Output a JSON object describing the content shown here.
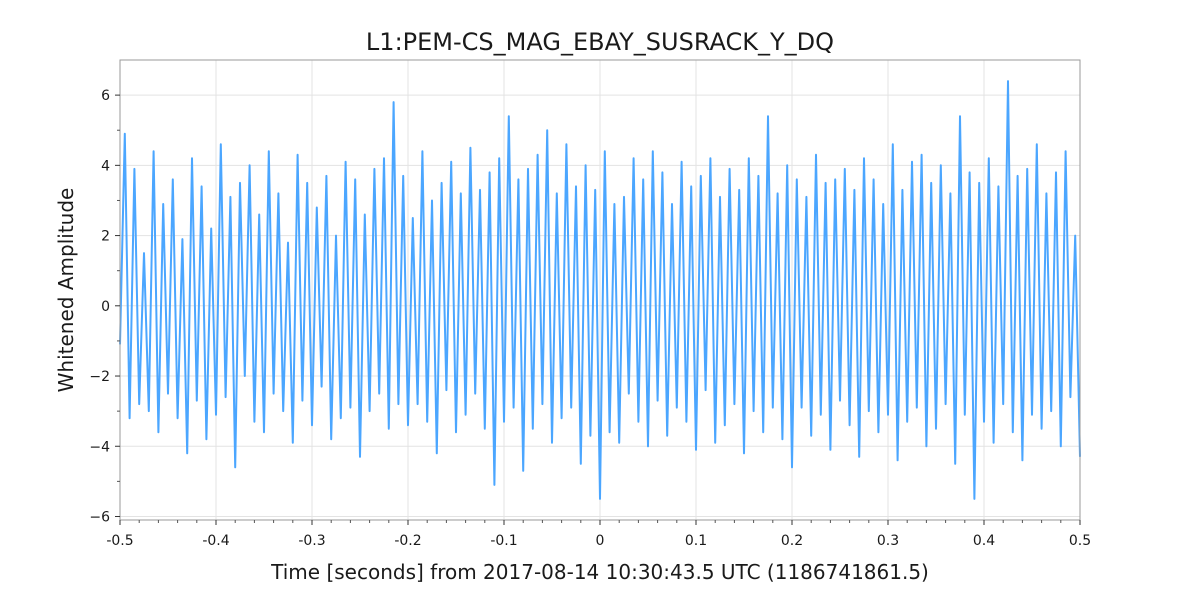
{
  "chart_data": {
    "type": "line",
    "title": "L1:PEM-CS_MAG_EBAY_SUSRACK_Y_DQ",
    "xlabel": "Time [seconds] from 2017-08-14 10:30:43.5 UTC (1186741861.5)",
    "ylabel": "Whitened Amplitude",
    "xlim": [
      -0.5,
      0.5
    ],
    "ylim": [
      -6.1,
      7.0
    ],
    "grid": true,
    "xticks": [
      -0.5,
      -0.4,
      -0.3,
      -0.2,
      -0.1,
      0,
      0.1,
      0.2,
      0.3,
      0.4,
      0.5
    ],
    "xtick_labels": [
      "-0.5",
      "-0.4",
      "-0.3",
      "-0.2",
      "-0.1",
      "0",
      "0.1",
      "0.2",
      "0.3",
      "0.4",
      "0.5"
    ],
    "yticks": [
      -6,
      -4,
      -2,
      0,
      2,
      4,
      6
    ],
    "ytick_labels": [
      "−6",
      "−4",
      "−2",
      "0",
      "2",
      "4",
      "6"
    ],
    "series_color": "#4ba6ff",
    "series": [
      {
        "x": [
          -0.5,
          -0.495,
          -0.49,
          -0.485,
          -0.48,
          -0.475,
          -0.47,
          -0.465,
          -0.46,
          -0.455,
          -0.45,
          -0.445,
          -0.44,
          -0.435,
          -0.43,
          -0.425,
          -0.42,
          -0.415,
          -0.41,
          -0.405,
          -0.4,
          -0.395,
          -0.39,
          -0.385,
          -0.38,
          -0.375,
          -0.37,
          -0.365,
          -0.36,
          -0.355,
          -0.35,
          -0.345,
          -0.34,
          -0.335,
          -0.33,
          -0.325,
          -0.32,
          -0.315,
          -0.31,
          -0.305,
          -0.3,
          -0.295,
          -0.29,
          -0.285,
          -0.28,
          -0.275,
          -0.27,
          -0.265,
          -0.26,
          -0.255,
          -0.25,
          -0.245,
          -0.24,
          -0.235,
          -0.23,
          -0.225,
          -0.22,
          -0.215,
          -0.21,
          -0.205,
          -0.2,
          -0.195,
          -0.19,
          -0.185,
          -0.18,
          -0.175,
          -0.17,
          -0.165,
          -0.16,
          -0.155,
          -0.15,
          -0.145,
          -0.14,
          -0.135,
          -0.13,
          -0.125,
          -0.12,
          -0.115,
          -0.11,
          -0.105,
          -0.1,
          -0.095,
          -0.09,
          -0.085,
          -0.08,
          -0.075,
          -0.07,
          -0.065,
          -0.06,
          -0.055,
          -0.05,
          -0.045,
          -0.04,
          -0.035,
          -0.03,
          -0.025,
          -0.02,
          -0.015,
          -0.01,
          -0.005,
          0,
          0.005,
          0.01,
          0.015,
          0.02,
          0.025,
          0.03,
          0.035,
          0.04,
          0.045,
          0.05,
          0.055,
          0.06,
          0.065,
          0.07,
          0.075,
          0.08,
          0.085,
          0.09,
          0.095,
          0.1,
          0.105,
          0.11,
          0.115,
          0.12,
          0.125,
          0.13,
          0.135,
          0.14,
          0.145,
          0.15,
          0.155,
          0.16,
          0.165,
          0.17,
          0.175,
          0.18,
          0.185,
          0.19,
          0.195,
          0.2,
          0.205,
          0.21,
          0.215,
          0.22,
          0.225,
          0.23,
          0.235,
          0.24,
          0.245,
          0.25,
          0.255,
          0.26,
          0.265,
          0.27,
          0.275,
          0.28,
          0.285,
          0.29,
          0.295,
          0.3,
          0.305,
          0.31,
          0.315,
          0.32,
          0.325,
          0.33,
          0.335,
          0.34,
          0.345,
          0.35,
          0.355,
          0.36,
          0.365,
          0.37,
          0.375,
          0.38,
          0.385,
          0.39,
          0.395,
          0.4,
          0.405,
          0.41,
          0.415,
          0.42,
          0.425,
          0.43,
          0.435,
          0.44,
          0.445,
          0.45,
          0.455,
          0.46,
          0.465,
          0.47,
          0.475,
          0.48,
          0.485,
          0.49,
          0.495,
          0.5
        ],
        "y": [
          -1.1,
          4.9,
          -3.2,
          3.9,
          -2.8,
          1.5,
          -3.0,
          4.4,
          -3.6,
          2.9,
          -2.5,
          3.6,
          -3.2,
          1.9,
          -4.2,
          4.2,
          -2.7,
          3.4,
          -3.8,
          2.2,
          -3.1,
          4.6,
          -2.6,
          3.1,
          -4.6,
          3.5,
          -2.0,
          4.0,
          -3.3,
          2.6,
          -3.6,
          4.4,
          -2.5,
          3.2,
          -3.0,
          1.8,
          -3.9,
          4.3,
          -2.7,
          3.5,
          -3.4,
          2.8,
          -2.3,
          3.7,
          -3.8,
          2.0,
          -3.2,
          4.1,
          -2.9,
          3.6,
          -4.3,
          2.6,
          -3.0,
          3.9,
          -2.5,
          4.2,
          -3.5,
          5.8,
          -2.8,
          3.7,
          -3.4,
          2.5,
          -2.8,
          4.4,
          -3.3,
          3.0,
          -4.2,
          3.5,
          -2.4,
          4.1,
          -3.6,
          3.2,
          -3.1,
          4.5,
          -2.5,
          3.3,
          -3.5,
          3.8,
          -5.1,
          4.2,
          -3.3,
          5.4,
          -2.9,
          3.6,
          -4.7,
          3.9,
          -3.5,
          4.3,
          -2.8,
          5.0,
          -3.9,
          3.2,
          -3.2,
          4.6,
          -2.9,
          3.4,
          -4.5,
          4.0,
          -3.7,
          3.3,
          -5.5,
          4.4,
          -3.6,
          2.9,
          -3.9,
          3.1,
          -2.5,
          4.2,
          -3.3,
          3.6,
          -4.0,
          4.4,
          -2.7,
          3.8,
          -3.7,
          2.9,
          -2.9,
          4.1,
          -3.3,
          3.4,
          -4.1,
          3.7,
          -2.4,
          4.2,
          -3.9,
          3.1,
          -3.4,
          3.9,
          -2.8,
          3.3,
          -4.2,
          4.2,
          -3.0,
          3.7,
          -3.6,
          5.4,
          -2.9,
          3.2,
          -3.8,
          4.0,
          -4.6,
          3.6,
          -2.9,
          3.1,
          -3.7,
          4.3,
          -3.1,
          3.5,
          -4.1,
          3.6,
          -2.7,
          3.9,
          -3.4,
          3.3,
          -4.3,
          4.2,
          -3.0,
          3.6,
          -3.6,
          2.9,
          -3.1,
          4.6,
          -4.4,
          3.3,
          -3.3,
          4.1,
          -2.9,
          4.3,
          -4.0,
          3.5,
          -3.5,
          4.0,
          -2.8,
          3.2,
          -4.5,
          5.4,
          -3.1,
          3.8,
          -5.5,
          3.5,
          -3.3,
          4.2,
          -3.9,
          3.4,
          -2.8,
          6.4,
          -3.6,
          3.7,
          -4.4,
          3.9,
          -3.1,
          4.6,
          -3.5,
          3.2,
          -3.0,
          3.8,
          -4.0,
          4.4,
          -2.6,
          2.0,
          -4.3
        ]
      }
    ]
  }
}
